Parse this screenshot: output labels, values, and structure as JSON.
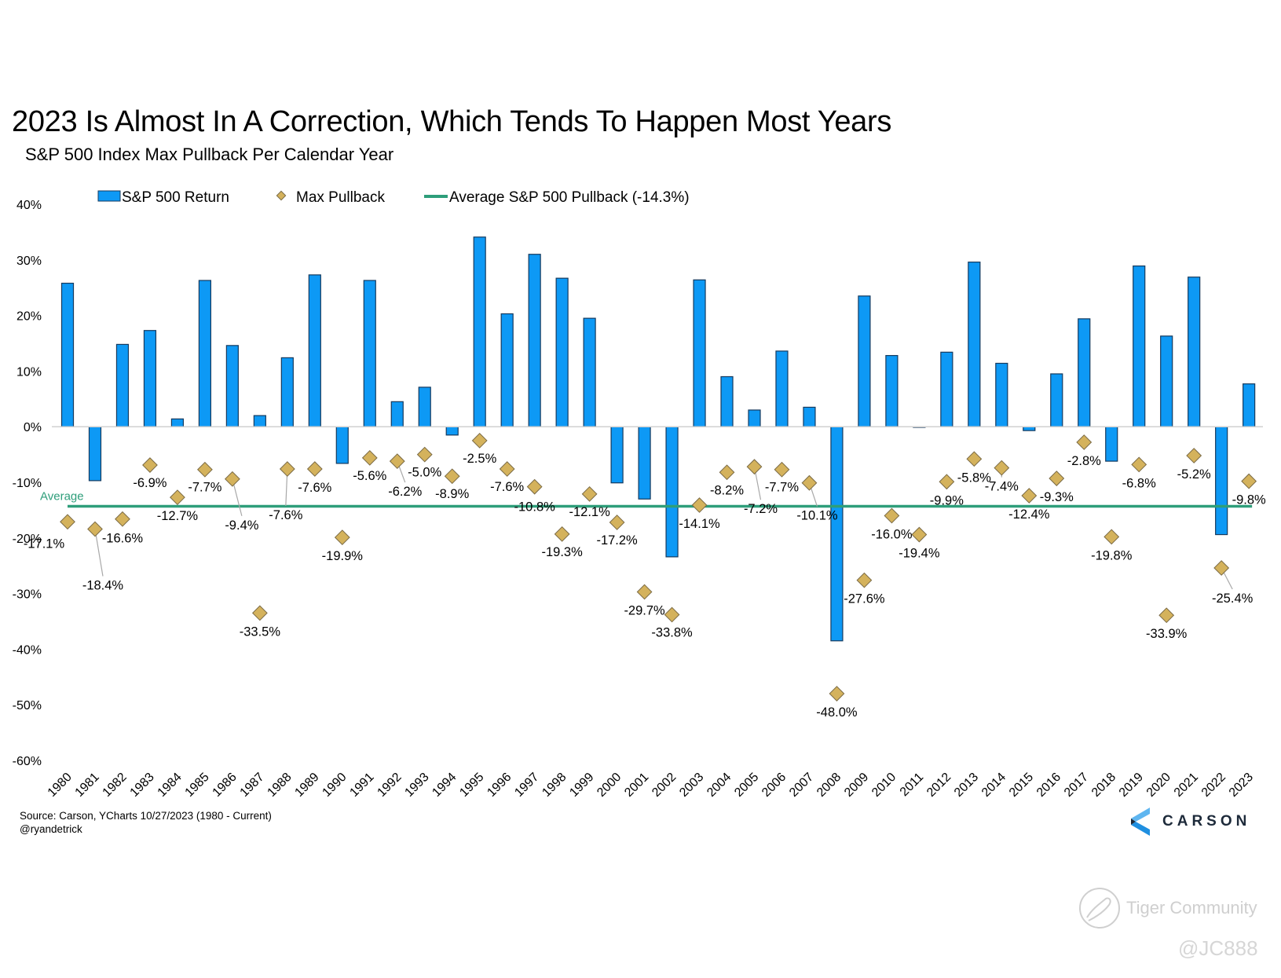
{
  "title": "2023 Is Almost In A Correction, Which Tends To Happen Most Years",
  "subtitle": "S&P 500 Index Max Pullback Per Calendar Year",
  "source": "Source: Carson, YCharts 10/27/2023 (1980 - Current)",
  "handle": "@ryandetrick",
  "logo_text": "CARSON",
  "watermark": {
    "brand": "Tiger Community",
    "user": "@JC888"
  },
  "colors": {
    "bar": "#0d99f5",
    "bar_edge": "#163a5e",
    "diamond": "#d4b25c",
    "diamond_edge": "#7a6a45",
    "average": "#2e9e7a",
    "axis": "#d0d0d0",
    "leader": "#a8a8a8"
  },
  "chart_data": {
    "type": "bar",
    "title": "2023 Is Almost In A Correction, Which Tends To Happen Most Years",
    "subtitle": "S&P 500 Index Max Pullback Per Calendar Year",
    "xlabel": "",
    "ylabel": "",
    "ylim": [
      -60,
      40
    ],
    "yticks": [
      40,
      30,
      20,
      10,
      0,
      -10,
      -20,
      -30,
      -40,
      -50,
      -60
    ],
    "ytick_labels": [
      "40%",
      "30%",
      "20%",
      "10%",
      "0%",
      "-10%",
      "-20%",
      "-30%",
      "-40%",
      "-50%",
      "-60%"
    ],
    "grid": false,
    "legend_position": "top-left",
    "legend": [
      "S&P 500 Return",
      "Max Pullback",
      "Average S&P 500 Pullback (-14.3%)"
    ],
    "categories": [
      "1980",
      "1981",
      "1982",
      "1983",
      "1984",
      "1985",
      "1986",
      "1987",
      "1988",
      "1989",
      "1990",
      "1991",
      "1992",
      "1993",
      "1994",
      "1995",
      "1996",
      "1997",
      "1998",
      "1999",
      "2000",
      "2001",
      "2002",
      "2003",
      "2004",
      "2005",
      "2006",
      "2007",
      "2008",
      "2009",
      "2010",
      "2011",
      "2012",
      "2013",
      "2014",
      "2015",
      "2016",
      "2017",
      "2018",
      "2019",
      "2020",
      "2021",
      "2022",
      "2023"
    ],
    "series": [
      {
        "name": "S&P 500 Return",
        "type": "bar",
        "values": [
          25.8,
          -9.7,
          14.8,
          17.3,
          1.4,
          26.3,
          14.6,
          2.0,
          12.4,
          27.3,
          -6.6,
          26.3,
          4.5,
          7.1,
          -1.5,
          34.1,
          20.3,
          31.0,
          26.7,
          19.5,
          -10.1,
          -13.0,
          -23.4,
          26.4,
          9.0,
          3.0,
          13.6,
          3.5,
          -38.5,
          23.5,
          12.8,
          0.0,
          13.4,
          29.6,
          11.4,
          -0.7,
          9.5,
          19.4,
          -6.2,
          28.9,
          16.3,
          26.9,
          -19.4,
          7.7
        ]
      },
      {
        "name": "Max Pullback",
        "type": "scatter",
        "values": [
          -17.1,
          -18.4,
          -16.6,
          -6.9,
          -12.7,
          -7.7,
          -9.4,
          -33.5,
          -7.6,
          -7.6,
          -19.9,
          -5.6,
          -6.2,
          -5.0,
          -8.9,
          -2.5,
          -7.6,
          -10.8,
          -19.3,
          -12.1,
          -17.2,
          -29.7,
          -33.8,
          -14.1,
          -8.2,
          -7.2,
          -7.7,
          -10.1,
          -48.0,
          -27.6,
          -16.0,
          -19.4,
          -9.9,
          -5.8,
          -7.4,
          -12.4,
          -9.3,
          -2.8,
          -19.8,
          -6.8,
          -33.9,
          -5.2,
          -25.4,
          -9.8
        ],
        "labels": [
          "-17.1%",
          "-18.4%",
          "-16.6%",
          "-6.9%",
          "-12.7%",
          "-7.7%",
          "-9.4%",
          "-33.5%",
          "-7.6%",
          "-7.6%",
          "-19.9%",
          "-5.6%",
          "-6.2%",
          "-5.0%",
          "-8.9%",
          "-2.5%",
          "-7.6%",
          "-10.8%",
          "-19.3%",
          "-12.1%",
          "-17.2%",
          "-29.7%",
          "-33.8%",
          "-14.1%",
          "-8.2%",
          "-7.2%",
          "-7.7%",
          "-10.1%",
          "-48.0%",
          "-27.6%",
          "-16.0%",
          "-19.4%",
          "-9.9%",
          "-5.8%",
          "-7.4%",
          "-12.4%",
          "-9.3%",
          "-2.8%",
          "-19.8%",
          "-6.8%",
          "-33.9%",
          "-5.2%",
          "-25.4%",
          "-9.8%"
        ]
      },
      {
        "name": "Average S&P 500 Pullback (-14.3%)",
        "type": "line",
        "value": -14.3,
        "label": "Average"
      }
    ]
  }
}
